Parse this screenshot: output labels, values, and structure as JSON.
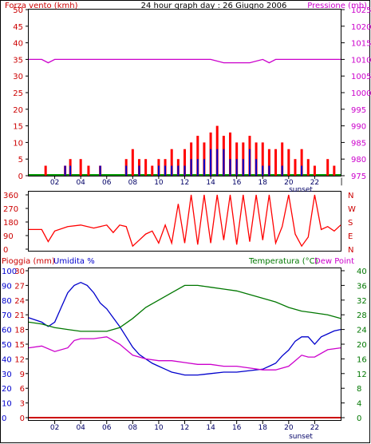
{
  "chart_data": [
    {
      "type": "bar",
      "title": "24 hour graph day : 26 Giugno 2006",
      "ylabel": "Forza vento (kmh)",
      "y2label": "Pressione (mb)",
      "ylim": [
        0,
        50
      ],
      "y_ticks": [
        0,
        5,
        10,
        15,
        20,
        25,
        30,
        35,
        40,
        45,
        50
      ],
      "y2lim": [
        975,
        1025
      ],
      "y2_ticks": [
        975,
        980,
        985,
        990,
        995,
        1000,
        1005,
        1010,
        1015,
        1020,
        1025
      ],
      "xlim": [
        0,
        24
      ],
      "x_ticks": [
        "02",
        "04",
        "06",
        "08",
        "10",
        "12",
        "14",
        "16",
        "18",
        "20",
        "22"
      ],
      "x_tick_values": [
        2,
        4,
        6,
        8,
        10,
        12,
        14,
        16,
        18,
        20,
        22
      ],
      "x_end_label": "|",
      "annotation": "sunset",
      "annotation_x": 20.5,
      "colors": {
        "gust": "#ff0000",
        "wind": "#0000cc",
        "calm": "#009900",
        "pressure": "#cc00cc",
        "text_left": "#cc0000",
        "text_right": "#cc00cc",
        "title": "#000000"
      },
      "series": [
        {
          "x": [
            0.0,
            1.0,
            1.5,
            2.0,
            3.5,
            4.0,
            5.0,
            6.0,
            7.5,
            8.0,
            9.0,
            10.0,
            11.0,
            12.0,
            13.0,
            14.0,
            15.0,
            16.0,
            17.0,
            18.0,
            18.5,
            19.0,
            20.0,
            21.0,
            22.0,
            23.0,
            24.0
          ],
          "values": [
            1010,
            1010,
            1009,
            1010,
            1010,
            1010,
            1010,
            1010,
            1010,
            1010,
            1010,
            1010,
            1010,
            1010,
            1010,
            1010,
            1009,
            1009,
            1009,
            1010,
            1009,
            1010,
            1010,
            1010,
            1010,
            1010,
            1010
          ]
        }
      ],
      "wind_bars": [
        {
          "x": 1.3,
          "gust": 3,
          "wind": 0
        },
        {
          "x": 2.8,
          "gust": 3,
          "wind": 3
        },
        {
          "x": 3.2,
          "gust": 5,
          "wind": 3
        },
        {
          "x": 4.0,
          "gust": 5,
          "wind": 0
        },
        {
          "x": 4.6,
          "gust": 3,
          "wind": 0
        },
        {
          "x": 5.5,
          "gust": 3,
          "wind": 3
        },
        {
          "x": 7.5,
          "gust": 5,
          "wind": 3
        },
        {
          "x": 8.0,
          "gust": 8,
          "wind": 0
        },
        {
          "x": 8.5,
          "gust": 5,
          "wind": 3
        },
        {
          "x": 9.0,
          "gust": 5,
          "wind": 0
        },
        {
          "x": 9.5,
          "gust": 3,
          "wind": 0
        },
        {
          "x": 10.0,
          "gust": 5,
          "wind": 3
        },
        {
          "x": 10.5,
          "gust": 5,
          "wind": 3
        },
        {
          "x": 11.0,
          "gust": 8,
          "wind": 3
        },
        {
          "x": 11.5,
          "gust": 5,
          "wind": 3
        },
        {
          "x": 12.0,
          "gust": 8,
          "wind": 3
        },
        {
          "x": 12.5,
          "gust": 10,
          "wind": 5
        },
        {
          "x": 13.0,
          "gust": 12,
          "wind": 5
        },
        {
          "x": 13.5,
          "gust": 10,
          "wind": 5
        },
        {
          "x": 14.0,
          "gust": 13,
          "wind": 8
        },
        {
          "x": 14.5,
          "gust": 15,
          "wind": 8
        },
        {
          "x": 15.0,
          "gust": 12,
          "wind": 8
        },
        {
          "x": 15.5,
          "gust": 13,
          "wind": 5
        },
        {
          "x": 16.0,
          "gust": 10,
          "wind": 5
        },
        {
          "x": 16.5,
          "gust": 10,
          "wind": 5
        },
        {
          "x": 17.0,
          "gust": 12,
          "wind": 8
        },
        {
          "x": 17.5,
          "gust": 10,
          "wind": 5
        },
        {
          "x": 18.0,
          "gust": 10,
          "wind": 3
        },
        {
          "x": 18.5,
          "gust": 8,
          "wind": 3
        },
        {
          "x": 19.0,
          "gust": 8,
          "wind": 0
        },
        {
          "x": 19.5,
          "gust": 10,
          "wind": 3
        },
        {
          "x": 20.0,
          "gust": 8,
          "wind": 0
        },
        {
          "x": 20.5,
          "gust": 5,
          "wind": 0
        },
        {
          "x": 21.0,
          "gust": 8,
          "wind": 3
        },
        {
          "x": 21.5,
          "gust": 5,
          "wind": 0
        },
        {
          "x": 22.0,
          "gust": 3,
          "wind": 0
        },
        {
          "x": 23.0,
          "gust": 5,
          "wind": 0
        },
        {
          "x": 23.5,
          "gust": 3,
          "wind": 0
        }
      ]
    },
    {
      "type": "line",
      "ylim": [
        0,
        360
      ],
      "y_ticks": [
        0,
        90,
        180,
        270,
        360
      ],
      "right_labels": [
        "N",
        "W",
        "S",
        "E",
        "N"
      ],
      "xlim": [
        0,
        24
      ],
      "color": "#ff0000",
      "series": [
        {
          "x": [
            0,
            1,
            1.5,
            2,
            3,
            4,
            5,
            6,
            6.5,
            7,
            7.5,
            8,
            8.5,
            9,
            9.5,
            10,
            10.5,
            11,
            11.5,
            12,
            12.5,
            13,
            13.5,
            14,
            14.5,
            15,
            15.5,
            16,
            16.5,
            17,
            17.5,
            18,
            18.5,
            19,
            19.5,
            20,
            20.5,
            21,
            21.5,
            22,
            22.5,
            23,
            23.5,
            24
          ],
          "values": [
            130,
            130,
            50,
            120,
            150,
            160,
            140,
            160,
            110,
            160,
            150,
            20,
            60,
            100,
            120,
            40,
            160,
            40,
            300,
            40,
            360,
            30,
            360,
            40,
            360,
            60,
            360,
            30,
            360,
            50,
            360,
            60,
            360,
            40,
            150,
            360,
            100,
            20,
            80,
            360,
            130,
            150,
            120,
            160
          ]
        }
      ]
    },
    {
      "type": "line",
      "left_labels": [
        "Pioggia (mm)",
        "Umidita %"
      ],
      "right_labels": [
        "Temperatura (°C)",
        "Dew Point"
      ],
      "y_left_rain": [
        0,
        3,
        6,
        9,
        12,
        15,
        18,
        21,
        24,
        27,
        30
      ],
      "y_left_hum": [
        0,
        10,
        20,
        30,
        40,
        50,
        60,
        70,
        80,
        90,
        100
      ],
      "y_right": [
        0,
        4,
        8,
        12,
        16,
        20,
        24,
        28,
        32,
        36,
        40
      ],
      "xlim": [
        0,
        24
      ],
      "x_ticks": [
        "02",
        "04",
        "06",
        "08",
        "10",
        "12",
        "14",
        "16",
        "18",
        "20",
        "22"
      ],
      "x_tick_values": [
        2,
        4,
        6,
        8,
        10,
        12,
        14,
        16,
        18,
        20,
        22
      ],
      "annotation": "sunset",
      "annotation_x": 20.5,
      "colors": {
        "rain": "#cc0000",
        "humidity": "#0000cc",
        "temperature": "#007700",
        "dewpoint": "#cc00cc",
        "text_left_rain": "#cc0000",
        "text_left_hum": "#0000cc",
        "text_right_temp": "#007700",
        "text_right_dew": "#cc00cc"
      },
      "series": [
        {
          "name": "Pioggia (mm)",
          "axis": "rain",
          "x": [
            0,
            24
          ],
          "values": [
            0,
            0
          ]
        },
        {
          "name": "Umidita %",
          "axis": "hum",
          "x": [
            0,
            1,
            1.5,
            2,
            2.5,
            3,
            3.5,
            4,
            4.5,
            5,
            5.5,
            6,
            6.5,
            7,
            7.5,
            8,
            8.5,
            9,
            9.5,
            10,
            10.5,
            11,
            11.5,
            12,
            13,
            14,
            15,
            16,
            17,
            18,
            18.5,
            19,
            19.5,
            20,
            20.5,
            21,
            21.5,
            22,
            22.5,
            23,
            23.5,
            24
          ],
          "values": [
            68,
            65,
            62,
            65,
            75,
            85,
            90,
            92,
            90,
            85,
            78,
            74,
            68,
            62,
            55,
            48,
            43,
            40,
            37,
            35,
            33,
            31,
            30,
            29,
            29,
            30,
            31,
            31,
            32,
            33,
            35,
            37,
            42,
            46,
            52,
            55,
            55,
            50,
            55,
            57,
            59,
            60
          ]
        },
        {
          "name": "Temperatura (°C)",
          "axis": "temp",
          "x": [
            0,
            1,
            2,
            3,
            4,
            5,
            6,
            7,
            8,
            9,
            10,
            11,
            12,
            13,
            14,
            15,
            16,
            17,
            18,
            19,
            20,
            21,
            22,
            23,
            24
          ],
          "values": [
            26,
            25.5,
            24.5,
            24,
            23.5,
            23.5,
            23.5,
            24.5,
            27,
            30,
            32,
            34,
            36,
            36,
            35.5,
            35,
            34.5,
            33.5,
            32.5,
            31.5,
            30,
            29,
            28.5,
            28,
            27
          ]
        },
        {
          "name": "Dew Point",
          "axis": "temp",
          "x": [
            0,
            1,
            2,
            3,
            3.5,
            4,
            5,
            6,
            7,
            8,
            9,
            10,
            11,
            12,
            13,
            14,
            15,
            16,
            17,
            18,
            19,
            20,
            20.5,
            21,
            21.5,
            22,
            23,
            24
          ],
          "values": [
            19,
            19.5,
            18,
            19,
            21,
            21.5,
            21.5,
            22,
            20,
            17,
            16,
            15.5,
            15.5,
            15,
            14.5,
            14.5,
            14,
            14,
            13.5,
            13,
            13,
            14,
            15.5,
            17,
            16.5,
            16.5,
            18.5,
            19
          ]
        }
      ]
    }
  ]
}
